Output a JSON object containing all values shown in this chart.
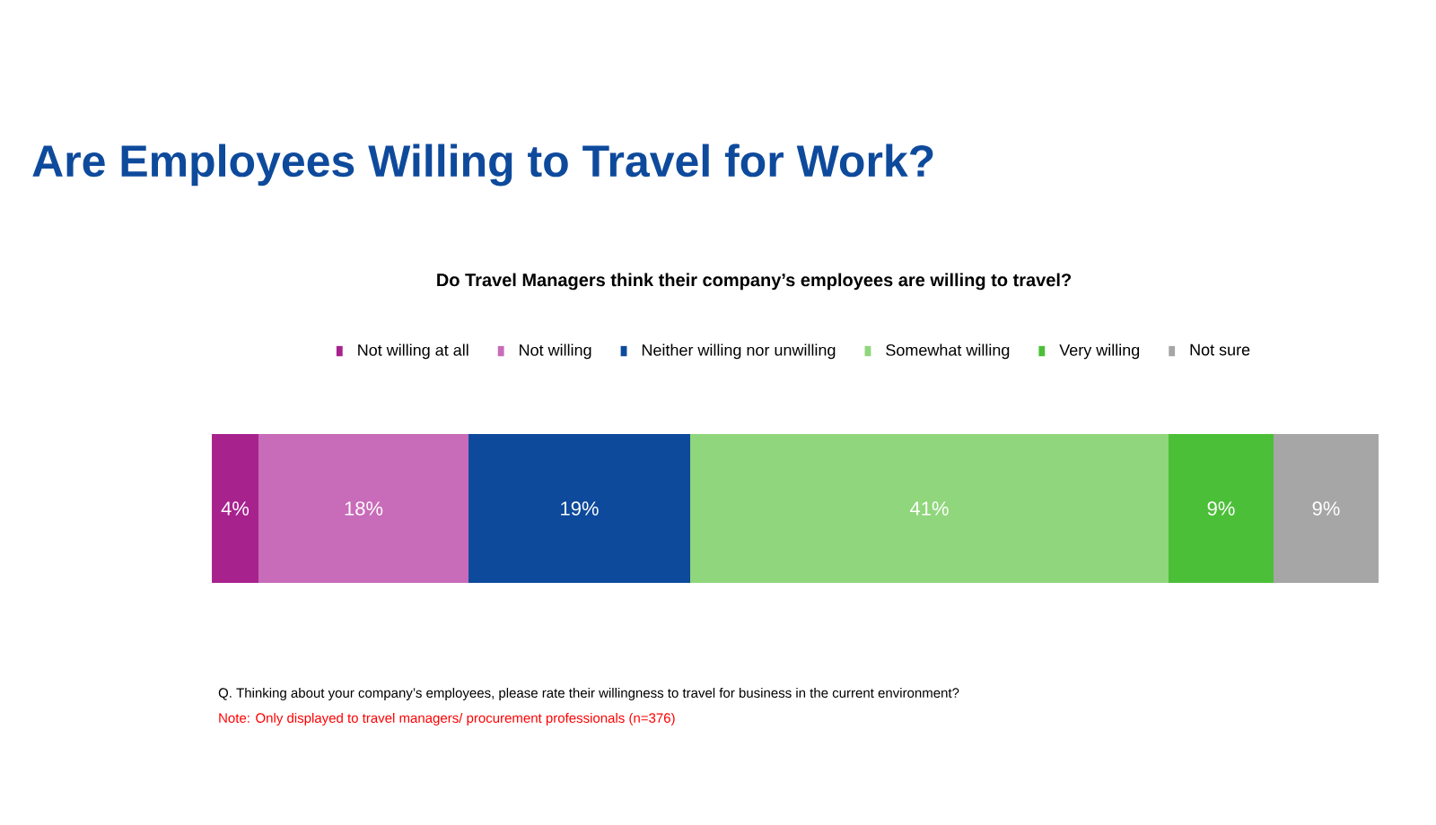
{
  "chart_data": {
    "type": "bar",
    "orientation": "horizontal",
    "stacked": true,
    "title": "Are Employees Willing to Travel for Work?",
    "subtitle": "Do Travel Managers think their company’s employees are willing to travel?",
    "categories": [
      null
    ],
    "series": [
      {
        "name": "Not willing at all",
        "color": "#a8228e",
        "values": [
          4
        ],
        "value_labels": [
          "4%"
        ]
      },
      {
        "name": "Not willing",
        "color": "#c86bb9",
        "values": [
          18
        ],
        "value_labels": [
          "18%"
        ]
      },
      {
        "name": "Neither willing nor unwilling",
        "color": "#0e4a9c",
        "values": [
          19
        ],
        "value_labels": [
          "19%"
        ]
      },
      {
        "name": "Somewhat willing",
        "color": "#90d67c",
        "values": [
          41
        ],
        "value_labels": [
          "41%"
        ]
      },
      {
        "name": "Very willing",
        "color": "#4cbf38",
        "values": [
          9
        ],
        "value_labels": [
          "9%"
        ]
      },
      {
        "name": "Not sure",
        "color": "#a6a6a6",
        "values": [
          9
        ],
        "value_labels": [
          "9%"
        ]
      }
    ],
    "legend": "top",
    "annotations": [
      "Q. Thinking about your company’s employees, please rate their willingness to travel for business in the current environment?",
      "Note: Only displayed to travel managers/ procurement professionals (n=376)"
    ]
  }
}
